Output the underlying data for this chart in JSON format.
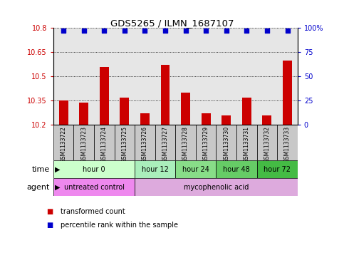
{
  "title": "GDS5265 / ILMN_1687107",
  "samples": [
    "GSM1133722",
    "GSM1133723",
    "GSM1133724",
    "GSM1133725",
    "GSM1133726",
    "GSM1133727",
    "GSM1133728",
    "GSM1133729",
    "GSM1133730",
    "GSM1133731",
    "GSM1133732",
    "GSM1133733"
  ],
  "bar_values": [
    10.35,
    10.34,
    10.56,
    10.37,
    10.27,
    10.57,
    10.4,
    10.27,
    10.26,
    10.37,
    10.26,
    10.6
  ],
  "bar_baseline": 10.2,
  "percentile_values": [
    97,
    97,
    97,
    97,
    97,
    97,
    97,
    97,
    97,
    97,
    97,
    97
  ],
  "bar_color": "#cc0000",
  "percentile_color": "#0000cc",
  "ylim_left": [
    10.2,
    10.8
  ],
  "ylim_right": [
    0,
    100
  ],
  "yticks_left": [
    10.2,
    10.35,
    10.5,
    10.65,
    10.8
  ],
  "yticks_right": [
    0,
    25,
    50,
    75,
    100
  ],
  "ytick_labels_left": [
    "10.2",
    "10.35",
    "10.5",
    "10.65",
    "10.8"
  ],
  "ytick_labels_right": [
    "0",
    "25",
    "50",
    "75",
    "100%"
  ],
  "time_groups": [
    {
      "label": "hour 0",
      "start": 0,
      "end": 3,
      "color": "#ccffcc"
    },
    {
      "label": "hour 12",
      "start": 4,
      "end": 5,
      "color": "#aaeebb"
    },
    {
      "label": "hour 24",
      "start": 6,
      "end": 7,
      "color": "#88dd88"
    },
    {
      "label": "hour 48",
      "start": 8,
      "end": 9,
      "color": "#66cc66"
    },
    {
      "label": "hour 72",
      "start": 10,
      "end": 11,
      "color": "#44bb44"
    }
  ],
  "agent_groups": [
    {
      "label": "untreated control",
      "start": 0,
      "end": 3,
      "color": "#ee88ee"
    },
    {
      "label": "mycophenolic acid",
      "start": 4,
      "end": 11,
      "color": "#ddaadd"
    }
  ],
  "bar_width": 0.45,
  "sample_col_color": "#c8c8c8",
  "background_color": "#ffffff",
  "xlim": [
    -0.5,
    11.5
  ],
  "legend_items": [
    {
      "label": "transformed count",
      "color": "#cc0000"
    },
    {
      "label": "percentile rank within the sample",
      "color": "#0000cc"
    }
  ]
}
